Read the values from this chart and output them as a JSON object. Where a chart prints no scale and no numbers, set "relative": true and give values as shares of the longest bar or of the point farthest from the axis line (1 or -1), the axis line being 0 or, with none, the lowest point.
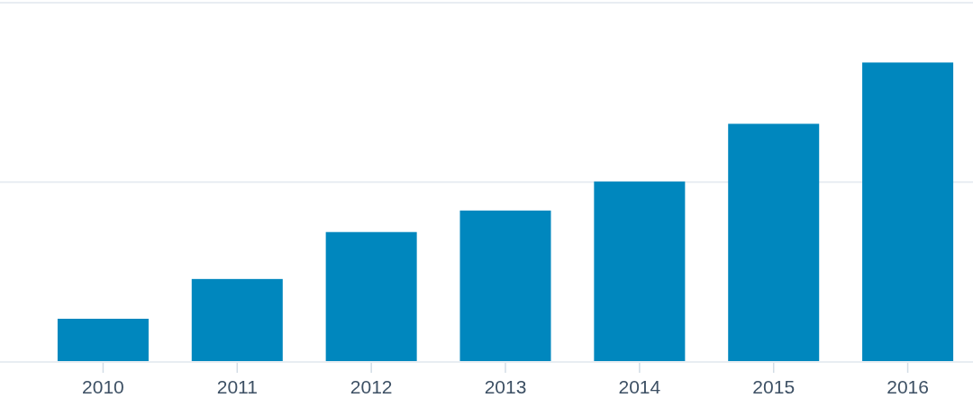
{
  "chart_data": {
    "type": "bar",
    "categories": [
      "2010",
      "2011",
      "2012",
      "2013",
      "2014",
      "2015",
      "2016"
    ],
    "values": [
      0.143,
      0.276,
      0.433,
      0.505,
      0.602,
      0.795,
      1
    ],
    "color": "#0087be",
    "relative": true,
    "ref_lines": [
      {
        "axis": "y",
        "value": 0.6,
        "color": "#e8edf2"
      },
      {
        "axis": "y",
        "value": 1.2,
        "color": "#e8edf2"
      }
    ]
  }
}
